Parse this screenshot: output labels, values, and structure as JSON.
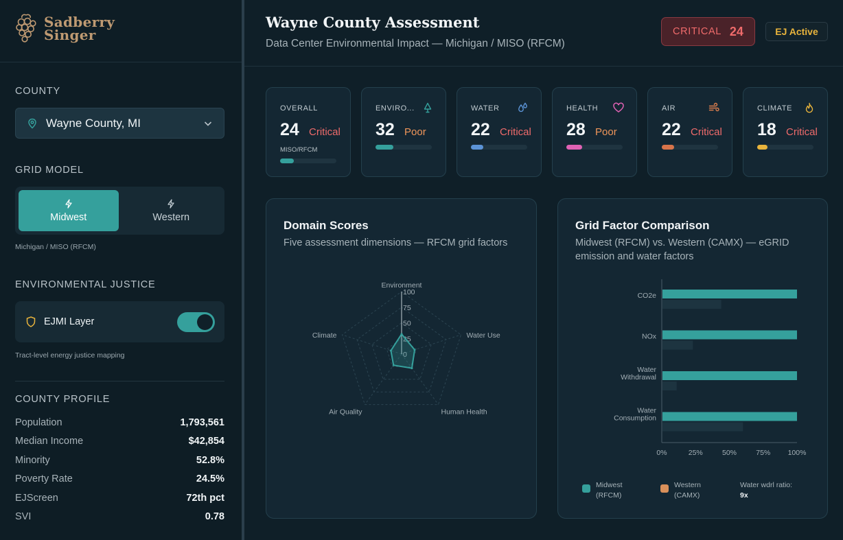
{
  "brand": {
    "line1": "Sadberry",
    "line2": "Singer"
  },
  "sidebar": {
    "county_label": "COUNTY",
    "county_value": "Wayne County, MI",
    "grid_label": "GRID MODEL",
    "grid_options": [
      {
        "label": "Midwest",
        "active": true
      },
      {
        "label": "Western",
        "active": false
      }
    ],
    "grid_note": "Michigan / MISO (RFCM)",
    "ej_label": "ENVIRONMENTAL JUSTICE",
    "ej_layer_label": "EJMI Layer",
    "ej_layer_on": true,
    "ej_note": "Tract-level energy justice mapping",
    "profile_label": "COUNTY PROFILE",
    "profile": [
      {
        "key": "Population",
        "value": "1,793,561"
      },
      {
        "key": "Median Income",
        "value": "$42,854"
      },
      {
        "key": "Minority",
        "value": "52.8%"
      },
      {
        "key": "Poverty Rate",
        "value": "24.5%"
      },
      {
        "key": "EJScreen",
        "value": "72th pct"
      },
      {
        "key": "SVI",
        "value": "0.78"
      }
    ]
  },
  "header": {
    "title": "Wayne County Assessment",
    "subtitle": "Data Center Environmental Impact — Michigan / MISO (RFCM)",
    "critical_label": "CRITICAL",
    "critical_value": "24",
    "ej_badge": "EJ Active"
  },
  "metrics": [
    {
      "label": "OVERALL",
      "score": "24",
      "grade": "Critical",
      "grade_color": "#ef6b6b",
      "fill": 0.24,
      "bar_color": "#35a09c",
      "sub": "MISO/RFCM",
      "icon": "none"
    },
    {
      "label": "ENVIRO...",
      "score": "32",
      "grade": "Poor",
      "grade_color": "#f0965a",
      "fill": 0.32,
      "bar_color": "#35a09c",
      "icon": "tree-icon",
      "icon_color": "#35a09c"
    },
    {
      "label": "WATER",
      "score": "22",
      "grade": "Critical",
      "grade_color": "#ef6b6b",
      "fill": 0.22,
      "bar_color": "#5b93d6",
      "icon": "droplets-icon",
      "icon_color": "#5b93d6"
    },
    {
      "label": "HEALTH",
      "score": "28",
      "grade": "Poor",
      "grade_color": "#f0965a",
      "fill": 0.28,
      "bar_color": "#e062b4",
      "icon": "heart-icon",
      "icon_color": "#e062b4"
    },
    {
      "label": "AIR",
      "score": "22",
      "grade": "Critical",
      "grade_color": "#ef6b6b",
      "fill": 0.22,
      "bar_color": "#d8744a",
      "icon": "wind-icon",
      "icon_color": "#e0804e"
    },
    {
      "label": "CLIMATE",
      "score": "18",
      "grade": "Critical",
      "grade_color": "#ef6b6b",
      "fill": 0.18,
      "bar_color": "#e9b43c",
      "icon": "flame-icon",
      "icon_color": "#e9b43c"
    }
  ],
  "domain_panel": {
    "title": "Domain Scores",
    "subtitle": "Five assessment dimensions — RFCM grid factors"
  },
  "grid_panel": {
    "title": "Grid Factor Comparison",
    "subtitle": "Midwest (RFCM) vs. Western (CAMX) — eGRID emission and water factors",
    "legend": [
      {
        "label_line1": "Midwest",
        "label_line2": "(RFCM)",
        "color": "#35a09c"
      },
      {
        "label_line1": "Western",
        "label_line2": "(CAMX)",
        "color": "#d9905a"
      }
    ],
    "ratio_label": "Water wdrl ratio:",
    "ratio_value": "9x"
  },
  "chart_data": [
    {
      "type": "radar",
      "axes": [
        "Environment",
        "Water Use",
        "Human Health",
        "Air Quality",
        "Climate"
      ],
      "ticks": [
        "100",
        "75",
        "50",
        "25",
        "0"
      ],
      "range": [
        0,
        100
      ],
      "values": [
        32,
        22,
        28,
        22,
        18
      ],
      "color": "#35a09c"
    },
    {
      "type": "bar",
      "orientation": "horizontal",
      "categories": [
        "CO2e",
        "NOx",
        "Water Withdrawal",
        "Water Consumption"
      ],
      "category_lines": [
        [
          "CO2e"
        ],
        [
          "NOx"
        ],
        [
          "Water",
          "Withdrawal"
        ],
        [
          "Water",
          "Consumption"
        ]
      ],
      "xticks": [
        "0%",
        "25%",
        "50%",
        "75%",
        "100%"
      ],
      "xlim": [
        0,
        100
      ],
      "series": [
        {
          "name": "Midwest (RFCM)",
          "color": "#35a09c",
          "values": [
            100,
            100,
            100,
            100
          ]
        },
        {
          "name": "Western (CAMX)",
          "color": "#1d3440",
          "values": [
            44,
            23,
            11,
            60
          ]
        }
      ]
    }
  ]
}
